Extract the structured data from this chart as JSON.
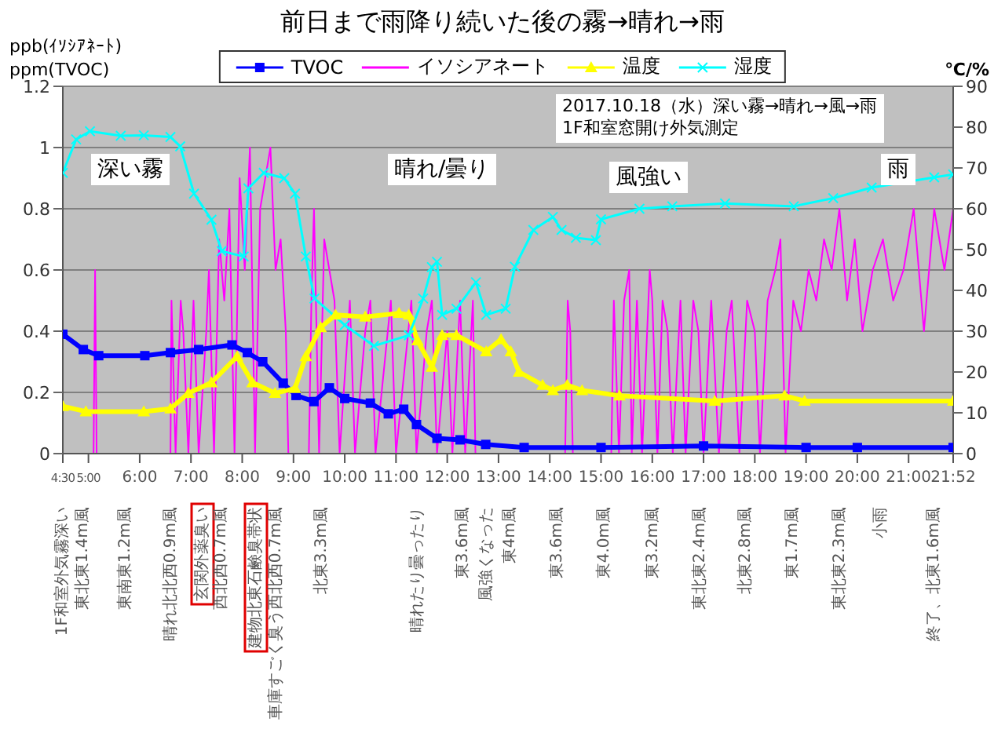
{
  "chart_data": {
    "type": "line",
    "title": "前日まで雨降り続いた後の霧→晴れ→雨",
    "ylabel": "ppb(ｲｿｼｱﾈｰﾄ)\nppm(TVOC)",
    "y2label": "℃/%",
    "xlim": [
      4.5,
      21.87
    ],
    "xticks": [
      {
        "value": 4.5,
        "label": "4:30"
      },
      {
        "value": 5,
        "label": "5:00"
      },
      {
        "value": 6,
        "label": "6:00"
      },
      {
        "value": 7,
        "label": "7:00"
      },
      {
        "value": 8,
        "label": "8:00"
      },
      {
        "value": 9,
        "label": "9:00"
      },
      {
        "value": 10,
        "label": "10:00"
      },
      {
        "value": 11,
        "label": "11:00"
      },
      {
        "value": 12,
        "label": "12:00"
      },
      {
        "value": 13,
        "label": "13:00"
      },
      {
        "value": 14,
        "label": "14:00"
      },
      {
        "value": 15,
        "label": "15:00"
      },
      {
        "value": 16,
        "label": "16:00"
      },
      {
        "value": 17,
        "label": "17:00"
      },
      {
        "value": 18,
        "label": "18:00"
      },
      {
        "value": 19,
        "label": "19:00"
      },
      {
        "value": 20,
        "label": "20:00"
      },
      {
        "value": 21,
        "label": "21:00"
      },
      {
        "value": 21.87,
        "label": "21:52"
      }
    ],
    "ylim": [
      0,
      1.2
    ],
    "yticks": [
      0,
      0.2,
      0.4,
      0.6,
      0.8,
      1,
      1.2
    ],
    "y2lim": [
      0,
      90
    ],
    "y2ticks": [
      0,
      10,
      20,
      30,
      40,
      50,
      60,
      70,
      80,
      90
    ],
    "grid": "y",
    "legend": "top",
    "series": [
      {
        "name": "TVOC",
        "color": "#0000ff",
        "marker": "square",
        "x": [
          4.5,
          4.9,
          5.2,
          6.1,
          6.6,
          7.15,
          7.8,
          8.1,
          8.4,
          8.8,
          9.05,
          9.4,
          9.7,
          10,
          10.5,
          10.85,
          11.15,
          11.4,
          11.8,
          12.25,
          12.75,
          13.5,
          15,
          17,
          19,
          20,
          21.87
        ],
        "values": [
          0.39,
          0.34,
          0.32,
          0.32,
          0.33,
          0.34,
          0.355,
          0.33,
          0.3,
          0.23,
          0.19,
          0.17,
          0.215,
          0.18,
          0.165,
          0.13,
          0.145,
          0.095,
          0.05,
          0.045,
          0.03,
          0.02,
          0.02,
          0.025,
          0.02,
          0.02,
          0.02
        ]
      },
      {
        "name": "イソシアネート",
        "color": "#ff00ff",
        "marker": "none",
        "x": [
          4.5,
          5.1,
          5.13,
          5.16,
          6.6,
          6.62,
          6.7,
          6.8,
          6.85,
          6.95,
          7.05,
          7.15,
          7.3,
          7.35,
          7.45,
          7.55,
          7.65,
          7.75,
          7.85,
          7.95,
          8.05,
          8.15,
          8.25,
          8.35,
          8.45,
          8.55,
          8.65,
          8.75,
          8.85,
          8.9,
          9.3,
          9.35,
          9.4,
          9.5,
          9.6,
          9.7,
          9.8,
          9.9,
          10.1,
          10.2,
          10.4,
          10.5,
          10.6,
          10.9,
          11,
          11.3,
          11.4,
          11.6,
          11.7,
          11.8,
          12,
          12.1,
          12.25,
          12.35,
          12.5,
          12.55,
          14.3,
          14.35,
          14.4,
          14.45,
          15.2,
          15.25,
          15.35,
          15.45,
          15.55,
          15.6,
          15.7,
          15.8,
          15.95,
          16,
          16.1,
          16.2,
          16.3,
          16.4,
          16.55,
          16.65,
          16.8,
          16.9,
          17,
          17.15,
          17.3,
          17.45,
          17.55,
          17.7,
          17.85,
          18,
          18.1,
          18.25,
          18.4,
          18.5,
          18.6,
          18.75,
          18.9,
          19.05,
          19.2,
          19.35,
          19.5,
          19.65,
          19.8,
          19.95,
          20.1,
          20.3,
          20.5,
          20.7,
          20.9,
          21.1,
          21.3,
          21.5,
          21.7,
          21.87
        ],
        "values": [
          0,
          0,
          0.6,
          0,
          0,
          0.5,
          0,
          0.5,
          0.4,
          0,
          0.5,
          0,
          0.4,
          0.6,
          0,
          0.7,
          0.5,
          0.8,
          0,
          0.9,
          0.6,
          1,
          0,
          0.8,
          0.9,
          1,
          0.6,
          0.7,
          0.4,
          0,
          0,
          0.5,
          0.8,
          0,
          0.7,
          0.6,
          0.5,
          0,
          0.5,
          0,
          0.4,
          0.5,
          0,
          0.5,
          0,
          0.5,
          0,
          0.4,
          0.5,
          0,
          0.4,
          0,
          0.5,
          0,
          0.5,
          0,
          0,
          0.5,
          0.4,
          0,
          0,
          0.5,
          0,
          0.5,
          0.6,
          0,
          0.5,
          0,
          0.6,
          0.5,
          0,
          0.5,
          0.4,
          0,
          0.5,
          0,
          0.5,
          0.4,
          0,
          0.5,
          0,
          0.4,
          0.5,
          0,
          0.5,
          0.4,
          0,
          0.5,
          0.6,
          0.7,
          0,
          0.5,
          0.4,
          0.6,
          0.5,
          0.7,
          0.6,
          0.8,
          0.5,
          0.7,
          0.4,
          0.6,
          0.7,
          0.5,
          0.6,
          0.8,
          0.4,
          0.8,
          0.6,
          0.8
        ]
      },
      {
        "name": "温度",
        "color": "#ffff00",
        "marker": "triangle",
        "axis": "y2",
        "x": [
          4.5,
          4.95,
          6.08,
          6.6,
          6.95,
          7.4,
          7.9,
          8.2,
          8.64,
          9.03,
          9.24,
          9.53,
          9.82,
          10.4,
          11.06,
          11.25,
          11.42,
          11.7,
          11.9,
          12.18,
          12.76,
          13.05,
          13.24,
          13.4,
          13.86,
          14.06,
          14.34,
          14.63,
          15.36,
          17.22,
          18.58,
          18.97,
          21.87
        ],
        "values": [
          11.6,
          10.3,
          10.3,
          11,
          14.8,
          17.4,
          23.8,
          17.4,
          14.8,
          16,
          23.8,
          30.9,
          34,
          33.5,
          34.4,
          34,
          27.7,
          21.2,
          29,
          29,
          25,
          28,
          25,
          20,
          16.8,
          15.5,
          16.8,
          15.5,
          14.2,
          12.9,
          14.2,
          12.9,
          12.9
        ]
      },
      {
        "name": "湿度",
        "color": "#00ffff",
        "marker": "cross",
        "axis": "y2",
        "x": [
          4.5,
          4.76,
          5.03,
          5.63,
          6.08,
          6.6,
          6.79,
          7.06,
          7.4,
          7.6,
          8.03,
          8.12,
          8.42,
          8.82,
          9.03,
          9.24,
          9.41,
          10,
          10.57,
          11.25,
          11.53,
          11.7,
          11.8,
          11.9,
          12.18,
          12.56,
          12.76,
          13.14,
          13.32,
          13.68,
          14.06,
          14.23,
          14.51,
          14.9,
          15,
          15.75,
          16.39,
          17.42,
          18.76,
          19.53,
          20.28,
          21.5,
          21.87
        ],
        "values": [
          68.8,
          77,
          79,
          77.9,
          78,
          77.6,
          75.3,
          63.7,
          57.3,
          49.6,
          48.3,
          65,
          68.8,
          67.5,
          63.7,
          48.3,
          38,
          31.5,
          26.4,
          29,
          38,
          45.7,
          47,
          34,
          35.5,
          42,
          34,
          35.5,
          45.8,
          54.8,
          58,
          54.8,
          52.9,
          52.3,
          57.4,
          60,
          60.6,
          61.3,
          60.6,
          62.6,
          65.2,
          67.7,
          68.4
        ]
      }
    ],
    "annotations": [
      "深い霧",
      "晴れ/曇り",
      "風強い",
      "雨",
      "2017.10.18（水）深い霧→晴れ→風→雨\n1F和室窓開け外気測定",
      "1F和室外気霧深い",
      "東北東1.4m風",
      "東南東1.2m風",
      "晴れ北北西0.9m風",
      "玄関外薬臭い",
      "西北西0.7m風",
      "建物北東石鹸臭帯状",
      "車庫すごく臭う西北西0.7m風",
      "北東3.3m風",
      "晴れたり曇ったり",
      "東3.6m風",
      "風強くなった",
      "東4m風",
      "東3.6m風",
      "東4.0m風",
      "東3.2m風",
      "東北東2.4m風",
      "北東2.8m風",
      "東1.7m風",
      "東北東2.3m風",
      "小雨",
      "終了、北東1.6m風"
    ]
  }
}
